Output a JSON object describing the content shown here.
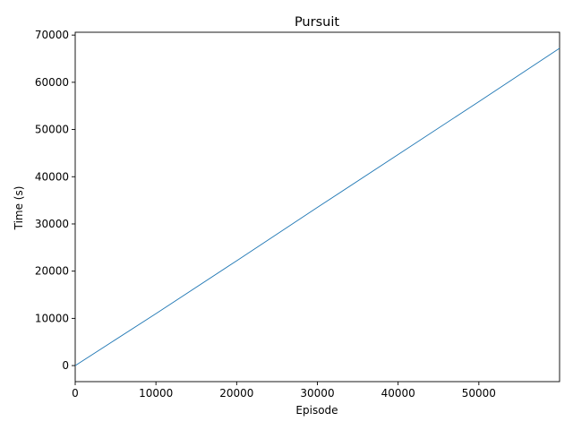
{
  "chart_data": {
    "type": "line",
    "title": "Pursuit",
    "xlabel": "Episode",
    "ylabel": "Time (s)",
    "xlim": [
      0,
      60000
    ],
    "ylim": [
      -3400,
      70600
    ],
    "xticks": [
      0,
      10000,
      20000,
      30000,
      40000,
      50000
    ],
    "yticks": [
      0,
      10000,
      20000,
      30000,
      40000,
      50000,
      60000,
      70000
    ],
    "grid": false,
    "series": [
      {
        "color": "#1f77b4",
        "x": [
          0,
          10000,
          20000,
          30000,
          40000,
          50000,
          60000
        ],
        "y": [
          0,
          11000,
          22200,
          33500,
          44700,
          55900,
          67200
        ]
      }
    ]
  }
}
